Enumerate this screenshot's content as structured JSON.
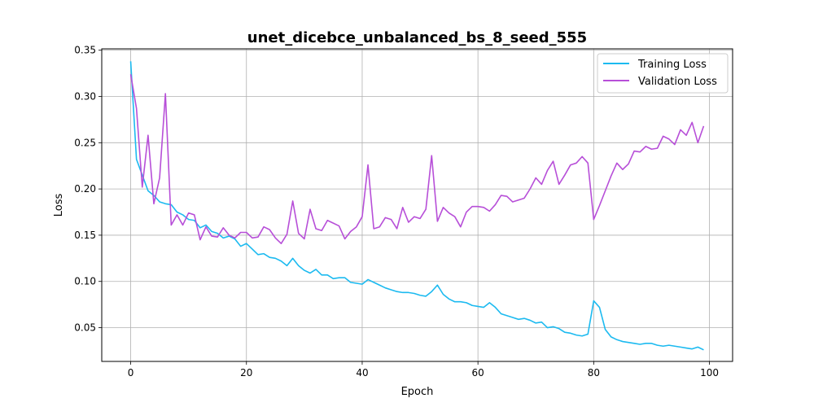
{
  "chart_data": {
    "type": "line",
    "title": "unet_dicebce_unbalanced_bs_8_seed_555",
    "xlabel": "Epoch",
    "ylabel": "Loss",
    "xlim": [
      -5,
      104
    ],
    "ylim": [
      0.0135,
      0.3515
    ],
    "xticks": [
      0,
      20,
      40,
      60,
      80,
      100
    ],
    "yticks": [
      0.05,
      0.1,
      0.15,
      0.2,
      0.25,
      0.3,
      0.35
    ],
    "ytick_labels": [
      "0.05",
      "0.10",
      "0.15",
      "0.20",
      "0.25",
      "0.30",
      "0.35"
    ],
    "grid": true,
    "legend_position": "upper right",
    "series": [
      {
        "name": "Training Loss",
        "color": "#1cbaf0",
        "values": [
          0.338,
          0.232,
          0.215,
          0.198,
          0.193,
          0.186,
          0.184,
          0.183,
          0.175,
          0.172,
          0.167,
          0.166,
          0.158,
          0.161,
          0.154,
          0.152,
          0.147,
          0.149,
          0.146,
          0.138,
          0.141,
          0.135,
          0.129,
          0.13,
          0.126,
          0.125,
          0.122,
          0.117,
          0.125,
          0.117,
          0.112,
          0.109,
          0.113,
          0.107,
          0.107,
          0.103,
          0.104,
          0.104,
          0.099,
          0.098,
          0.097,
          0.102,
          0.099,
          0.096,
          0.093,
          0.091,
          0.089,
          0.088,
          0.088,
          0.087,
          0.085,
          0.084,
          0.089,
          0.096,
          0.086,
          0.081,
          0.078,
          0.078,
          0.077,
          0.074,
          0.073,
          0.072,
          0.077,
          0.072,
          0.065,
          0.063,
          0.061,
          0.059,
          0.06,
          0.058,
          0.055,
          0.056,
          0.05,
          0.051,
          0.049,
          0.045,
          0.044,
          0.042,
          0.041,
          0.043,
          0.079,
          0.072,
          0.048,
          0.04,
          0.037,
          0.035,
          0.034,
          0.033,
          0.032,
          0.033,
          0.033,
          0.031,
          0.03,
          0.031,
          0.03,
          0.029,
          0.028,
          0.027,
          0.029,
          0.026
        ]
      },
      {
        "name": "Validation Loss",
        "color": "#b74fd8",
        "values": [
          0.324,
          0.287,
          0.202,
          0.258,
          0.184,
          0.212,
          0.303,
          0.161,
          0.172,
          0.161,
          0.174,
          0.172,
          0.145,
          0.159,
          0.149,
          0.148,
          0.158,
          0.15,
          0.147,
          0.153,
          0.153,
          0.147,
          0.148,
          0.159,
          0.156,
          0.147,
          0.141,
          0.151,
          0.187,
          0.152,
          0.146,
          0.178,
          0.157,
          0.155,
          0.166,
          0.163,
          0.16,
          0.146,
          0.154,
          0.159,
          0.17,
          0.226,
          0.157,
          0.159,
          0.169,
          0.167,
          0.157,
          0.18,
          0.164,
          0.17,
          0.168,
          0.178,
          0.236,
          0.165,
          0.18,
          0.174,
          0.17,
          0.159,
          0.175,
          0.181,
          0.181,
          0.18,
          0.176,
          0.183,
          0.193,
          0.192,
          0.186,
          0.188,
          0.19,
          0.2,
          0.212,
          0.205,
          0.22,
          0.23,
          0.205,
          0.215,
          0.226,
          0.228,
          0.235,
          0.228,
          0.167,
          0.182,
          0.198,
          0.214,
          0.228,
          0.221,
          0.227,
          0.241,
          0.24,
          0.246,
          0.243,
          0.244,
          0.257,
          0.254,
          0.248,
          0.264,
          0.258,
          0.272,
          0.25,
          0.268
        ]
      }
    ]
  }
}
